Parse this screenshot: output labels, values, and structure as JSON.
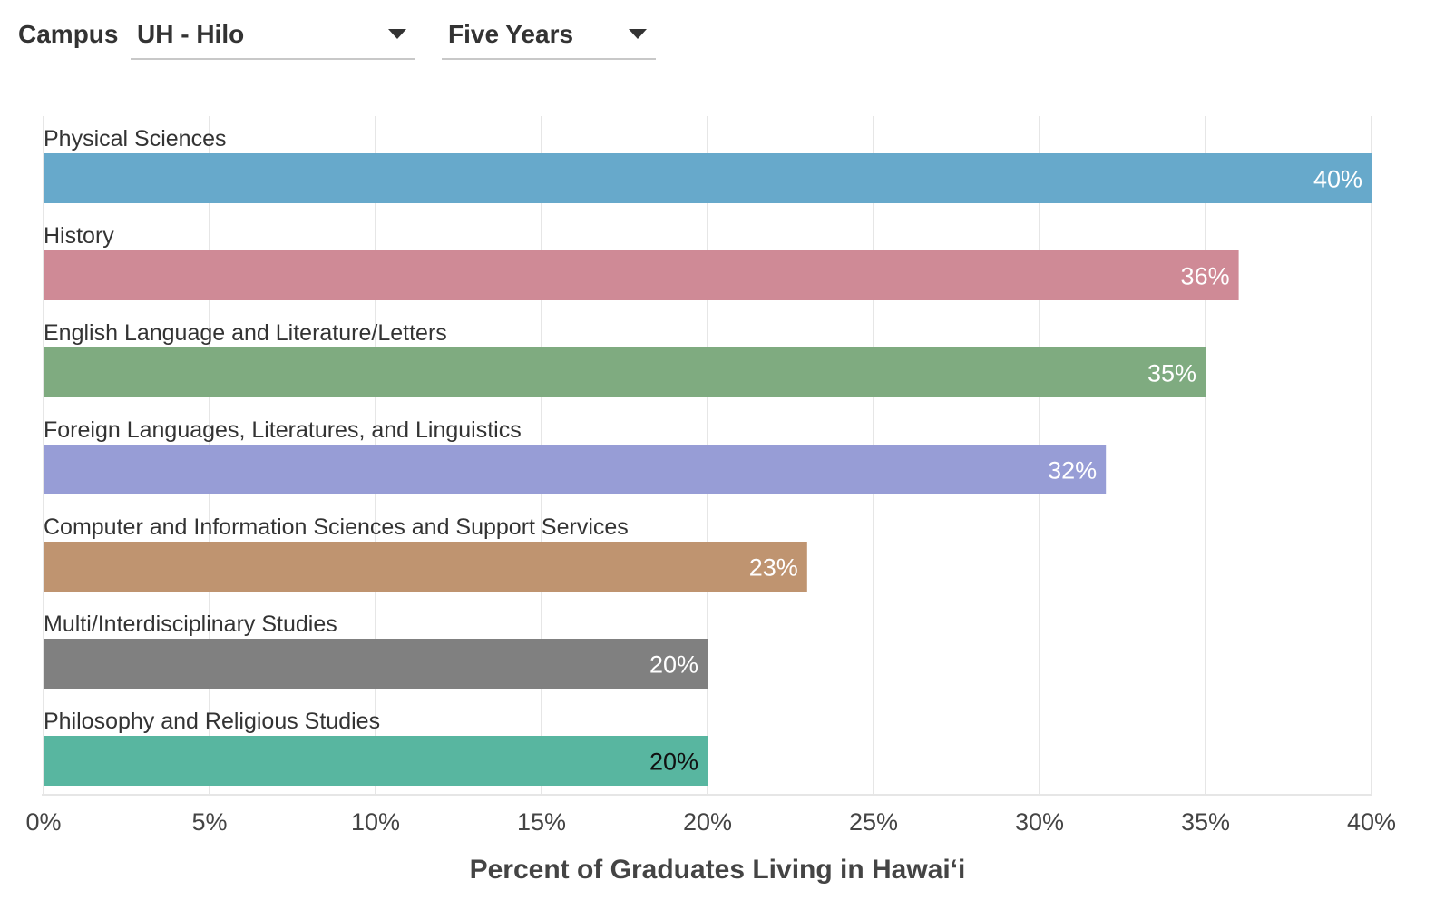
{
  "filters": {
    "campus_label": "Campus",
    "campus_value": "UH - Hilo",
    "period_value": "Five Years"
  },
  "chart_data": {
    "type": "bar",
    "orientation": "horizontal",
    "categories": [
      "Physical Sciences",
      "History",
      "English Language and Literature/Letters",
      "Foreign Languages, Literatures, and Linguistics",
      "Computer and Information Sciences and Support Services",
      "Multi/Interdisciplinary Studies",
      "Philosophy and Religious Studies"
    ],
    "values": [
      40,
      36,
      35,
      32,
      23,
      20,
      20
    ],
    "value_labels": [
      "40%",
      "36%",
      "35%",
      "32%",
      "23%",
      "20%",
      "20%"
    ],
    "colors": [
      "#67a9cb",
      "#cf8a96",
      "#7fab80",
      "#979dd6",
      "#bf9470",
      "#808080",
      "#58b6a0"
    ],
    "label_colors": [
      "#ffffff",
      "#ffffff",
      "#ffffff",
      "#ffffff",
      "#ffffff",
      "#ffffff",
      "#111111"
    ],
    "xlim": [
      0,
      40
    ],
    "xticks": [
      0,
      5,
      10,
      15,
      20,
      25,
      30,
      35,
      40
    ],
    "xtick_labels": [
      "0%",
      "5%",
      "10%",
      "15%",
      "20%",
      "25%",
      "30%",
      "35%",
      "40%"
    ],
    "xlabel": "Percent of Graduates Living in Hawai‘i",
    "grid": true
  }
}
